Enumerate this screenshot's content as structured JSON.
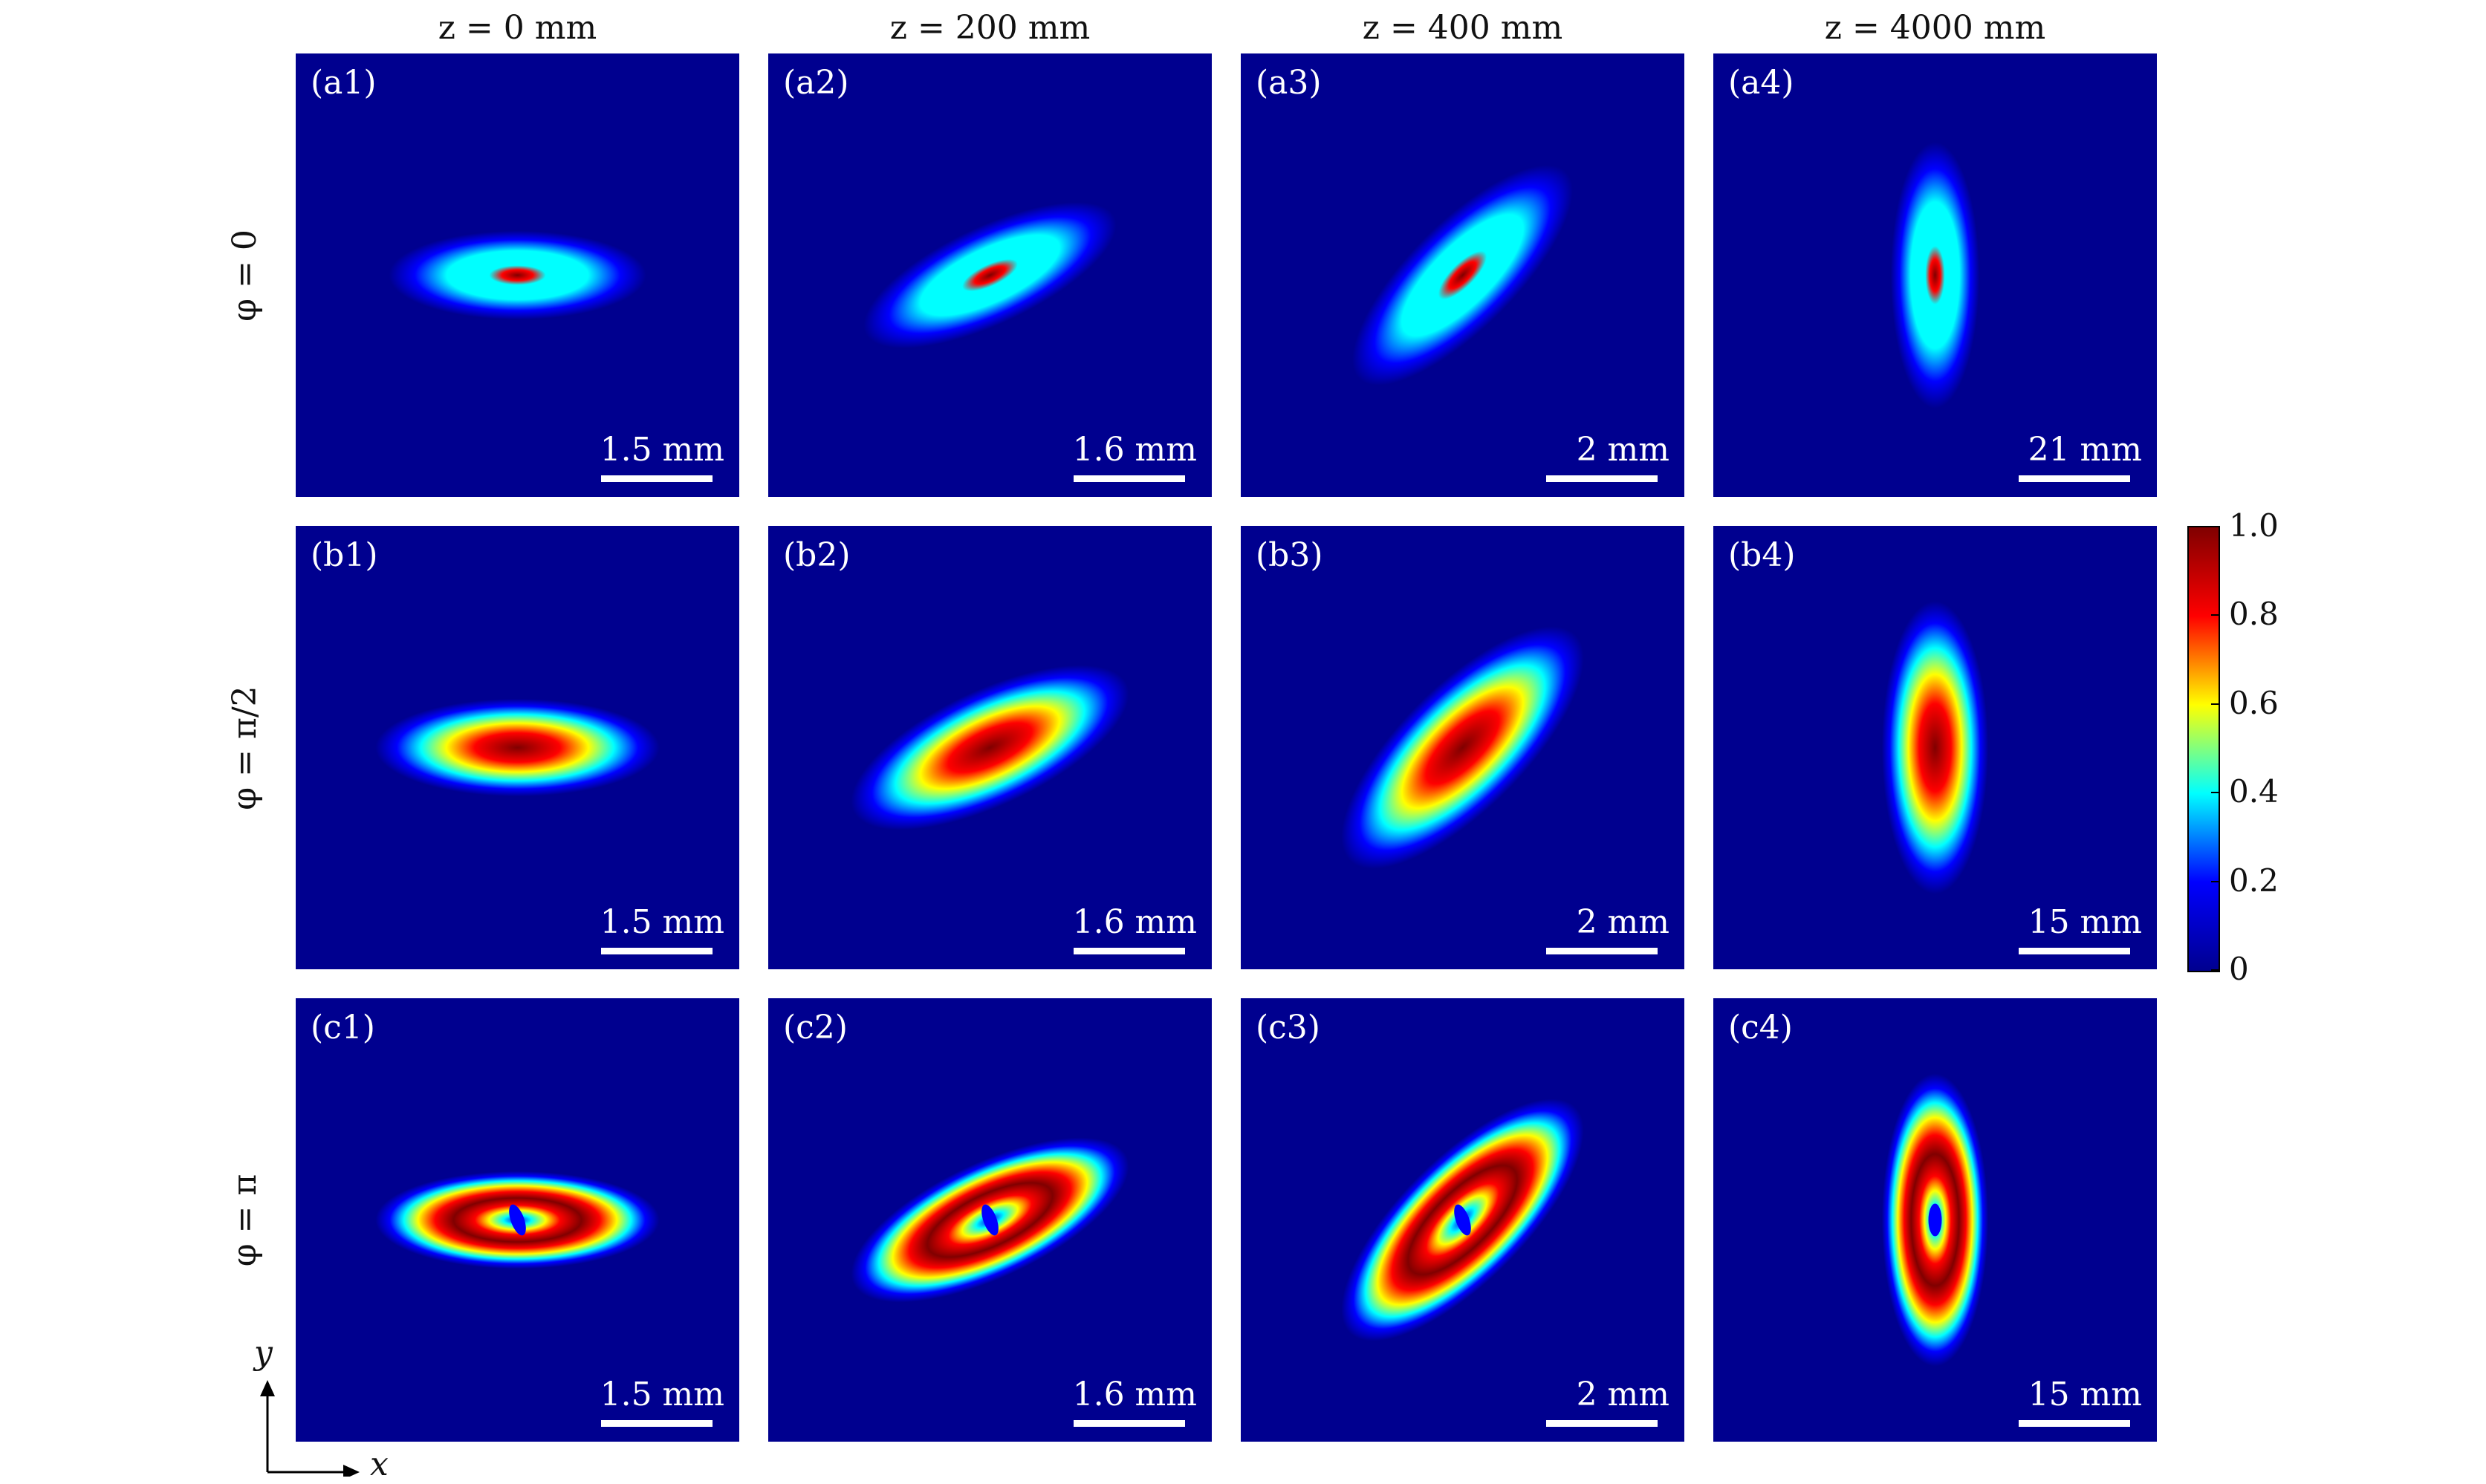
{
  "chart_data": {
    "type": "heatmap",
    "title": "",
    "column_titles": [
      "z = 0 mm",
      "z = 200 mm",
      "z = 400 mm",
      "z = 4000 mm"
    ],
    "row_labels": [
      "φ = 0",
      "φ = π/2",
      "φ = π"
    ],
    "rows": [
      {
        "phi": "0",
        "panels": [
          {
            "tag": "(a1)",
            "scale": "1.5 mm",
            "rotation_deg": 0,
            "major_radius": 0.58,
            "minor_radius": 0.2,
            "center": "peak"
          },
          {
            "tag": "(a2)",
            "scale": "1.6 mm",
            "rotation_deg": -25,
            "major_radius": 0.62,
            "minor_radius": 0.22,
            "center": "peak"
          },
          {
            "tag": "(a3)",
            "scale": "2 mm",
            "rotation_deg": -45,
            "major_radius": 0.66,
            "minor_radius": 0.24,
            "center": "peak"
          },
          {
            "tag": "(a4)",
            "scale": "21 mm",
            "rotation_deg": -90,
            "major_radius": 0.6,
            "minor_radius": 0.2,
            "center": "peak"
          }
        ]
      },
      {
        "phi": "π/2",
        "panels": [
          {
            "tag": "(b1)",
            "scale": "1.5 mm",
            "rotation_deg": 0,
            "major_radius": 0.64,
            "minor_radius": 0.22,
            "center": "flat-top"
          },
          {
            "tag": "(b2)",
            "scale": "1.6 mm",
            "rotation_deg": -25,
            "major_radius": 0.68,
            "minor_radius": 0.26,
            "center": "flat-top"
          },
          {
            "tag": "(b3)",
            "scale": "2 mm",
            "rotation_deg": -45,
            "major_radius": 0.72,
            "minor_radius": 0.28,
            "center": "flat-top"
          },
          {
            "tag": "(b4)",
            "scale": "15 mm",
            "rotation_deg": -90,
            "major_radius": 0.66,
            "minor_radius": 0.24,
            "center": "flat-top"
          }
        ]
      },
      {
        "phi": "π",
        "panels": [
          {
            "tag": "(c1)",
            "scale": "1.5 mm",
            "rotation_deg": 0,
            "major_radius": 0.64,
            "minor_radius": 0.22,
            "center": "vortex"
          },
          {
            "tag": "(c2)",
            "scale": "1.6 mm",
            "rotation_deg": -25,
            "major_radius": 0.68,
            "minor_radius": 0.26,
            "center": "vortex"
          },
          {
            "tag": "(c3)",
            "scale": "2 mm",
            "rotation_deg": -45,
            "major_radius": 0.72,
            "minor_radius": 0.28,
            "center": "vortex"
          },
          {
            "tag": "(c4)",
            "scale": "15 mm",
            "rotation_deg": -90,
            "major_radius": 0.66,
            "minor_radius": 0.24,
            "center": "vortex"
          }
        ]
      }
    ],
    "colorbar": {
      "min": 0,
      "max": 1.0,
      "ticks": [
        "1.0",
        "0.8",
        "0.6",
        "0.4",
        "0.2",
        "0"
      ],
      "colormap": "jet"
    },
    "axes": {
      "x_label": "x",
      "y_label": "y"
    }
  },
  "colors": {
    "background": "#00008f",
    "jet": [
      "#00008f",
      "#0000ff",
      "#00ffff",
      "#ffff00",
      "#ff0000",
      "#800000"
    ]
  }
}
